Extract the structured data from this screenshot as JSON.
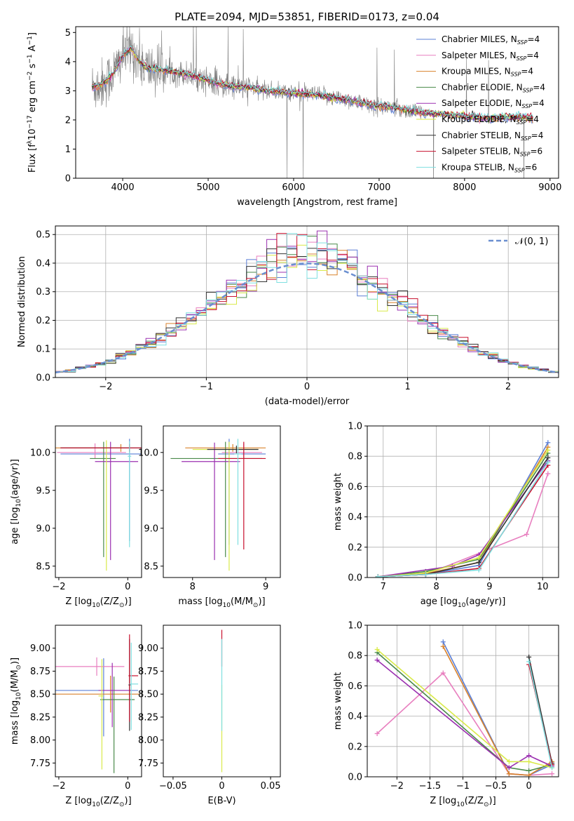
{
  "figure": {
    "title": "PLATE=2094, MJD=53851, FIBERID=0173, z=0.04"
  },
  "colors": {
    "Chabrier MILES": "#5b7fd6",
    "Salpeter MILES": "#e87fbf",
    "Kroupa MILES": "#d9822b",
    "Chabrier ELODIE": "#4a8a4a",
    "Salpeter ELODIE": "#9b30b0",
    "Kroupa ELODIE": "#d9ea4a",
    "Chabrier STELIB": "#333333",
    "Salpeter STELIB": "#c8102e",
    "Kroupa STELIB": "#7fdfe0",
    "data": "#808080",
    "normal": "#6a8fd0"
  },
  "chart_data": [
    {
      "type": "line",
      "id": "spectrum",
      "xlabel": "wavelength [Angstrom, rest frame]",
      "ylabel_parts": [
        "Flux [f",
        "λ",
        "10",
        "−17",
        " erg cm",
        "−2",
        " s",
        "−1",
        " A",
        "−1",
        "]"
      ],
      "xlim": [
        3450,
        9100
      ],
      "ylim": [
        0,
        5.2
      ],
      "xticks": [
        4000,
        5000,
        6000,
        7000,
        8000,
        9000
      ],
      "yticks": [
        0,
        1,
        2,
        3,
        4,
        5
      ],
      "legend_placement": "upper right",
      "legend": [
        {
          "name": "Chabrier MILES",
          "nssp": "4"
        },
        {
          "name": "Salpeter MILES",
          "nssp": "4"
        },
        {
          "name": "Kroupa MILES",
          "nssp": "4"
        },
        {
          "name": "Chabrier ELODIE",
          "nssp": "4"
        },
        {
          "name": "Salpeter ELODIE",
          "nssp": "4"
        },
        {
          "name": "Kroupa ELODIE",
          "nssp": "4"
        },
        {
          "name": "Chabrier STELIB",
          "nssp": "4"
        },
        {
          "name": "Salpeter STELIB",
          "nssp": "6"
        },
        {
          "name": "Kroupa STELIB",
          "nssp": "6"
        }
      ],
      "continuum": {
        "x": [
          3640,
          3700,
          3800,
          3900,
          4000,
          4100,
          4200,
          4300,
          4400,
          4500,
          4700,
          4900,
          5100,
          5300,
          5500,
          5700,
          5900,
          6100,
          6300,
          6500,
          6700,
          6900,
          7100,
          7300,
          7500,
          7700,
          7900,
          8100,
          8300,
          8500,
          8700,
          8800
        ],
        "y": [
          3.15,
          3.15,
          3.3,
          3.65,
          4.2,
          4.45,
          4.0,
          3.75,
          3.75,
          3.7,
          3.6,
          3.45,
          3.25,
          3.15,
          3.1,
          3.0,
          2.95,
          2.9,
          2.85,
          2.75,
          2.65,
          2.5,
          2.45,
          2.35,
          2.25,
          2.2,
          2.15,
          2.1,
          2.05,
          2.1,
          2.1,
          2.05
        ]
      }
    },
    {
      "type": "step",
      "id": "residuals",
      "xlabel": "(data-model)/error",
      "ylabel": "Normed distribution",
      "xlim": [
        -2.5,
        2.5
      ],
      "ylim": [
        0,
        0.53
      ],
      "xticks": [
        -2,
        -1,
        0,
        1,
        2
      ],
      "yticks": [
        0.0,
        0.1,
        0.2,
        0.3,
        0.4,
        0.5
      ],
      "grid": true,
      "legend_placement": "upper right",
      "legend_label": "𝒩(0, 1)",
      "bin_width": 0.1,
      "normal": {
        "mu": 0,
        "sigma": 1
      }
    },
    {
      "type": "scatter",
      "id": "age_vs_Z",
      "xlabel_parts": [
        "Z [log",
        "10",
        "(Z/Z",
        "⊙",
        ")]"
      ],
      "ylabel_parts": [
        "age  [log",
        "10",
        "(age/yr)]"
      ],
      "xlim": [
        -2.1,
        0.4
      ],
      "ylim": [
        8.35,
        10.35
      ],
      "xticks": [
        -2,
        0
      ],
      "yticks": [
        8.5,
        9.0,
        9.5,
        10.0
      ],
      "errorbars": [
        {
          "series": "Chabrier MILES",
          "x": 0.05,
          "xerr": [
            2.0,
            0.35
          ],
          "y": 9.98,
          "yerr": [
            1.15,
            0.2
          ]
        },
        {
          "series": "Salpeter MILES",
          "x": -0.95,
          "xerr": [
            1.1,
            0.9
          ],
          "y": 10.0,
          "yerr": [
            0.08,
            0.12
          ]
        },
        {
          "series": "Kroupa MILES",
          "x": -0.2,
          "xerr": [
            1.9,
            0.25
          ],
          "y": 10.06,
          "yerr": [
            0.05,
            0.05
          ]
        },
        {
          "series": "Chabrier ELODIE",
          "x": -0.7,
          "xerr": [
            0.4,
            0.35
          ],
          "y": 9.92,
          "yerr": [
            1.3,
            0.22
          ]
        },
        {
          "series": "Salpeter ELODIE",
          "x": -0.5,
          "xerr": [
            0.45,
            0.8
          ],
          "y": 9.88,
          "yerr": [
            1.3,
            0.26
          ]
        },
        {
          "series": "Kroupa ELODIE",
          "x": -0.62,
          "xerr": [
            0.1,
            0.1
          ],
          "y": 10.06,
          "yerr": [
            1.62,
            0.1
          ]
        },
        {
          "series": "Chabrier STELIB",
          "x": 0.05,
          "xerr": [
            2.0,
            0.35
          ],
          "y": 10.06,
          "yerr": [
            0.05,
            0.05
          ]
        },
        {
          "series": "Salpeter STELIB",
          "x": 0.05,
          "xerr": [
            2.0,
            0.35
          ],
          "y": 10.06,
          "yerr": [
            0.05,
            0.05
          ]
        },
        {
          "series": "Kroupa STELIB",
          "x": 0.05,
          "xerr": [
            0.05,
            0.05
          ],
          "y": 9.95,
          "yerr": [
            1.2,
            0.2
          ]
        }
      ]
    },
    {
      "type": "scatter",
      "id": "age_vs_mass",
      "xlabel_parts": [
        "mass [log",
        "10",
        "(M/M",
        "⊙",
        ")]"
      ],
      "ylabel": "",
      "xlim": [
        7.6,
        9.2
      ],
      "ylim": [
        8.35,
        10.35
      ],
      "xticks": [
        8,
        9
      ],
      "yticks": [
        8.5,
        9.0,
        9.5,
        10.0
      ],
      "errorbars": [
        {
          "series": "Chabrier MILES",
          "x": 8.5,
          "xerr": [
            0.15,
            0.5
          ],
          "y": 9.98,
          "yerr": [
            1.2,
            0.2
          ]
        },
        {
          "series": "Salpeter MILES",
          "x": 8.7,
          "xerr": [
            0.3,
            0.25
          ],
          "y": 10.0,
          "yerr": [
            0.08,
            0.12
          ]
        },
        {
          "series": "Kroupa MILES",
          "x": 8.55,
          "xerr": [
            0.65,
            0.45
          ],
          "y": 10.06,
          "yerr": [
            0.05,
            0.05
          ]
        },
        {
          "series": "Chabrier ELODIE",
          "x": 8.45,
          "xerr": [
            0.75,
            0.5
          ],
          "y": 9.92,
          "yerr": [
            1.3,
            0.22
          ]
        },
        {
          "series": "Salpeter ELODIE",
          "x": 8.3,
          "xerr": [
            0.45,
            0.35
          ],
          "y": 9.88,
          "yerr": [
            1.3,
            0.25
          ]
        },
        {
          "series": "Kroupa ELODIE",
          "x": 8.5,
          "xerr": [
            0.5,
            0.4
          ],
          "y": 10.04,
          "yerr": [
            1.6,
            0.1
          ]
        },
        {
          "series": "Chabrier STELIB",
          "x": 8.6,
          "xerr": [
            0.4,
            0.3
          ],
          "y": 10.04,
          "yerr": [
            0.05,
            0.05
          ]
        },
        {
          "series": "Salpeter STELIB",
          "x": 8.7,
          "xerr": [
            0.35,
            0.3
          ],
          "y": 9.92,
          "yerr": [
            1.2,
            0.22
          ]
        },
        {
          "series": "Kroupa STELIB",
          "x": 8.62,
          "xerr": [
            0.05,
            0.05
          ],
          "y": 9.98,
          "yerr": [
            1.2,
            0.2
          ]
        }
      ]
    },
    {
      "type": "line",
      "id": "massweight_vs_age",
      "xlabel_parts": [
        "age  [log",
        "10",
        "(age/yr)]"
      ],
      "ylabel": "mass weight",
      "xlim": [
        6.7,
        10.3
      ],
      "ylim": [
        0,
        1
      ],
      "xticks": [
        7,
        8,
        9,
        10
      ],
      "yticks": [
        0.0,
        0.2,
        0.4,
        0.6,
        0.8,
        1.0
      ],
      "grid": true,
      "series": [
        {
          "name": "Chabrier MILES",
          "x": [
            6.9,
            7.8,
            8.8,
            10.1
          ],
          "y": [
            0.005,
            0.02,
            0.08,
            0.89
          ]
        },
        {
          "name": "Salpeter MILES",
          "x": [
            6.9,
            7.8,
            9.7,
            10.1
          ],
          "y": [
            0.005,
            0.02,
            0.285,
            0.685
          ]
        },
        {
          "name": "Kroupa MILES",
          "x": [
            6.9,
            7.8,
            8.8,
            10.1
          ],
          "y": [
            0.005,
            0.025,
            0.1,
            0.86
          ]
        },
        {
          "name": "Chabrier ELODIE",
          "x": [
            6.9,
            7.8,
            8.8,
            10.1
          ],
          "y": [
            0.005,
            0.04,
            0.12,
            0.82
          ]
        },
        {
          "name": "Salpeter ELODIE",
          "x": [
            6.9,
            8.3,
            8.8,
            10.1
          ],
          "y": [
            0.005,
            0.075,
            0.15,
            0.77
          ]
        },
        {
          "name": "Kroupa ELODIE",
          "x": [
            6.9,
            7.8,
            8.8,
            10.1
          ],
          "y": [
            0.005,
            0.03,
            0.13,
            0.84
          ]
        },
        {
          "name": "Chabrier STELIB",
          "x": [
            6.9,
            7.8,
            8.8,
            10.1
          ],
          "y": [
            0.005,
            0.02,
            0.1,
            0.79
          ]
        },
        {
          "name": "Salpeter STELIB",
          "x": [
            6.9,
            7.8,
            8.8,
            10.1
          ],
          "y": [
            0.005,
            0.02,
            0.06,
            0.74
          ]
        },
        {
          "name": "Kroupa STELIB",
          "x": [
            6.9,
            7.8,
            8.8,
            10.1
          ],
          "y": [
            0.005,
            0.02,
            0.05,
            0.76
          ]
        }
      ]
    },
    {
      "type": "scatter",
      "id": "mass_vs_Z",
      "xlabel_parts": [
        "Z [log",
        "10",
        "(Z/Z",
        "⊙",
        ")]"
      ],
      "ylabel_parts": [
        "mass [log",
        "10",
        "(M/M",
        "⊙",
        ")]"
      ],
      "xlim": [
        -2.1,
        0.4
      ],
      "ylim": [
        7.6,
        9.25
      ],
      "xticks": [
        -2,
        0
      ],
      "yticks": [
        7.75,
        8.0,
        8.25,
        8.5,
        8.75,
        9.0
      ],
      "errorbars": [
        {
          "series": "Chabrier MILES",
          "x": -0.7,
          "xerr": [
            1.4,
            1.0
          ],
          "y": 8.54,
          "yerr": [
            0.5,
            0.35
          ]
        },
        {
          "series": "Salpeter MILES",
          "x": -0.9,
          "xerr": [
            1.2,
            0.8
          ],
          "y": 8.8,
          "yerr": [
            0.1,
            0.1
          ]
        },
        {
          "series": "Kroupa MILES",
          "x": -0.5,
          "xerr": [
            1.6,
            0.85
          ],
          "y": 8.5,
          "yerr": [
            0.2,
            0.2
          ]
        },
        {
          "series": "Chabrier ELODIE",
          "x": -0.4,
          "xerr": [
            0.4,
            0.6
          ],
          "y": 8.44,
          "yerr": [
            0.8,
            0.25
          ]
        },
        {
          "series": "Salpeter ELODIE",
          "x": -0.45,
          "xerr": [
            0.4,
            0.55
          ],
          "y": 8.54,
          "yerr": [
            0.4,
            0.3
          ]
        },
        {
          "series": "Kroupa ELODIE",
          "x": -0.75,
          "xerr": [
            0.1,
            0.05
          ],
          "y": 8.48,
          "yerr": [
            0.8,
            0.4
          ]
        },
        {
          "series": "Chabrier STELIB",
          "x": 0.05,
          "xerr": [
            0.03,
            0.03
          ],
          "y": 8.6,
          "yerr": [
            0.5,
            0.5
          ]
        },
        {
          "series": "Salpeter STELIB",
          "x": 0.05,
          "xerr": [
            0.03,
            0.25
          ],
          "y": 8.7,
          "yerr": [
            0.5,
            0.45
          ]
        },
        {
          "series": "Kroupa STELIB",
          "x": 0.1,
          "xerr": [
            0.05,
            0.2
          ],
          "y": 8.61,
          "yerr": [
            0.5,
            0.45
          ]
        }
      ]
    },
    {
      "type": "scatter",
      "id": "mass_vs_ebv",
      "xlabel": "E(B-V)",
      "ylabel": "",
      "xlim": [
        -0.06,
        0.06
      ],
      "ylim": [
        7.6,
        9.25
      ],
      "xticks": [
        -0.05,
        0.0,
        0.05
      ],
      "yticks": [
        7.75,
        8.0,
        8.25,
        8.5,
        8.75,
        9.0
      ],
      "errorbars": [
        {
          "series": "Kroupa ELODIE",
          "x": 0.0,
          "y": 8.35,
          "yerr": [
            0.7,
            0.25
          ]
        },
        {
          "series": "Salpeter STELIB",
          "x": 0.0,
          "y": 8.9,
          "yerr": [
            0.1,
            0.3
          ]
        },
        {
          "series": "Kroupa STELIB",
          "x": 0.0,
          "y": 8.6,
          "yerr": [
            0.5,
            0.5
          ]
        }
      ]
    },
    {
      "type": "line",
      "id": "massweight_vs_Z",
      "xlabel_parts": [
        "Z [log",
        "10",
        "(Z/Z",
        "⊙",
        ")]"
      ],
      "ylabel": "mass weight",
      "xlim": [
        -2.45,
        0.45
      ],
      "ylim": [
        0,
        1
      ],
      "xticks": [
        -2.0,
        -1.5,
        -1.0,
        -0.5,
        0.0
      ],
      "yticks": [
        0.0,
        0.2,
        0.4,
        0.6,
        0.8,
        1.0
      ],
      "grid": true,
      "series": [
        {
          "name": "Chabrier MILES",
          "x": [
            -1.3,
            -0.3,
            0.0,
            0.35
          ],
          "y": [
            0.89,
            0.02,
            0.01,
            0.08
          ]
        },
        {
          "name": "Salpeter MILES",
          "x": [
            -2.3,
            -1.3,
            -0.3,
            0.0,
            0.35
          ],
          "y": [
            0.285,
            0.685,
            0.02,
            0.01,
            0.02
          ]
        },
        {
          "name": "Kroupa MILES",
          "x": [
            -1.3,
            -0.3,
            0.0,
            0.35
          ],
          "y": [
            0.86,
            0.02,
            0.01,
            0.1
          ]
        },
        {
          "name": "Chabrier ELODIE",
          "x": [
            -2.3,
            -0.3,
            0.0,
            0.35
          ],
          "y": [
            0.82,
            0.06,
            0.04,
            0.08
          ]
        },
        {
          "name": "Salpeter ELODIE",
          "x": [
            -2.3,
            -0.3,
            0.0,
            0.35
          ],
          "y": [
            0.77,
            0.06,
            0.14,
            0.07
          ]
        },
        {
          "name": "Kroupa ELODIE",
          "x": [
            -2.3,
            -0.3,
            0.0,
            0.35
          ],
          "y": [
            0.84,
            0.1,
            0.1,
            0.06
          ]
        },
        {
          "name": "Chabrier STELIB",
          "x": [
            0.0,
            0.35
          ],
          "y": [
            0.79,
            0.09
          ]
        },
        {
          "name": "Salpeter STELIB",
          "x": [
            0.0,
            0.35
          ],
          "y": [
            0.74,
            0.08
          ]
        },
        {
          "name": "Kroupa STELIB",
          "x": [
            0.0,
            0.35
          ],
          "y": [
            0.76,
            0.06
          ]
        }
      ]
    }
  ]
}
